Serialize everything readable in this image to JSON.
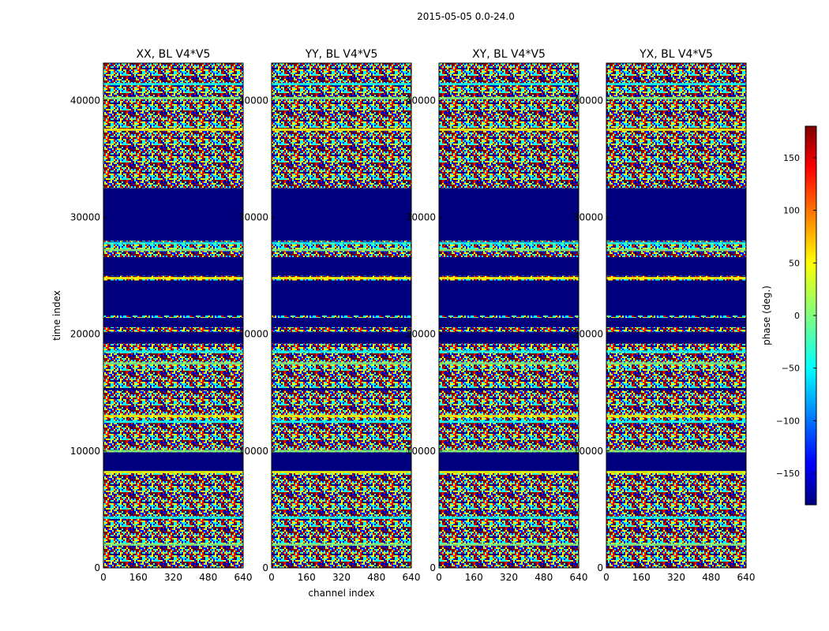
{
  "figure": {
    "title": "2015-05-05 0.0-24.0"
  },
  "chart_data": [
    {
      "type": "heatmap",
      "title": "XX, BL V4*V5",
      "xlabel": "",
      "ylabel": "time index",
      "xlim": [
        0,
        640
      ],
      "ylim": [
        0,
        43200
      ],
      "xticks": [
        0,
        160,
        320,
        480,
        640
      ],
      "yticks": [
        0,
        10000,
        20000,
        30000,
        40000
      ],
      "values": "phase (deg.), noisy across channels"
    },
    {
      "type": "heatmap",
      "title": "YY, BL V4*V5",
      "xlabel": "channel index",
      "ylabel": "",
      "xlim": [
        0,
        640
      ],
      "ylim": [
        0,
        43200
      ],
      "xticks": [
        0,
        160,
        320,
        480,
        640
      ],
      "yticks": [
        0,
        10000,
        20000,
        30000,
        40000
      ],
      "values": "phase (deg.), noisy across channels"
    },
    {
      "type": "heatmap",
      "title": "XY, BL V4*V5",
      "xlabel": "",
      "ylabel": "",
      "xlim": [
        0,
        640
      ],
      "ylim": [
        0,
        43200
      ],
      "xticks": [
        0,
        160,
        320,
        480,
        640
      ],
      "yticks": [
        0,
        10000,
        20000,
        30000,
        40000
      ],
      "values": "phase (deg.), noisy across channels"
    },
    {
      "type": "heatmap",
      "title": "YX, BL V4*V5",
      "xlabel": "",
      "ylabel": "",
      "xlim": [
        0,
        640
      ],
      "ylim": [
        0,
        43200
      ],
      "xticks": [
        0,
        160,
        320,
        480,
        640
      ],
      "yticks": [
        0,
        10000,
        20000,
        30000,
        40000
      ],
      "values": "phase (deg.), noisy across channels"
    }
  ],
  "colorbar": {
    "label": "phase (deg.)",
    "range": [
      -180,
      180
    ],
    "ticks": [
      150,
      100,
      50,
      0,
      -50,
      -100,
      -150
    ],
    "tick_labels": [
      "150",
      "100",
      "50",
      "0",
      "−50",
      "−100",
      "−150"
    ],
    "colormap": "jet",
    "colors": [
      "#00007f",
      "#0000ff",
      "#00ffff",
      "#7fff7f",
      "#ffff00",
      "#ff0000",
      "#7f0000"
    ]
  },
  "flagged_time_ranges": [
    [
      8200,
      9900
    ],
    [
      15200,
      15400
    ],
    [
      19200,
      20200
    ],
    [
      20600,
      21400
    ],
    [
      21600,
      24600
    ],
    [
      25000,
      26600
    ],
    [
      28000,
      32500
    ]
  ],
  "bright_rows": [
    2000,
    4300,
    8200,
    10000,
    12500,
    13000,
    17500,
    18500,
    24800,
    27200,
    27800,
    37500,
    40200,
    41400
  ]
}
